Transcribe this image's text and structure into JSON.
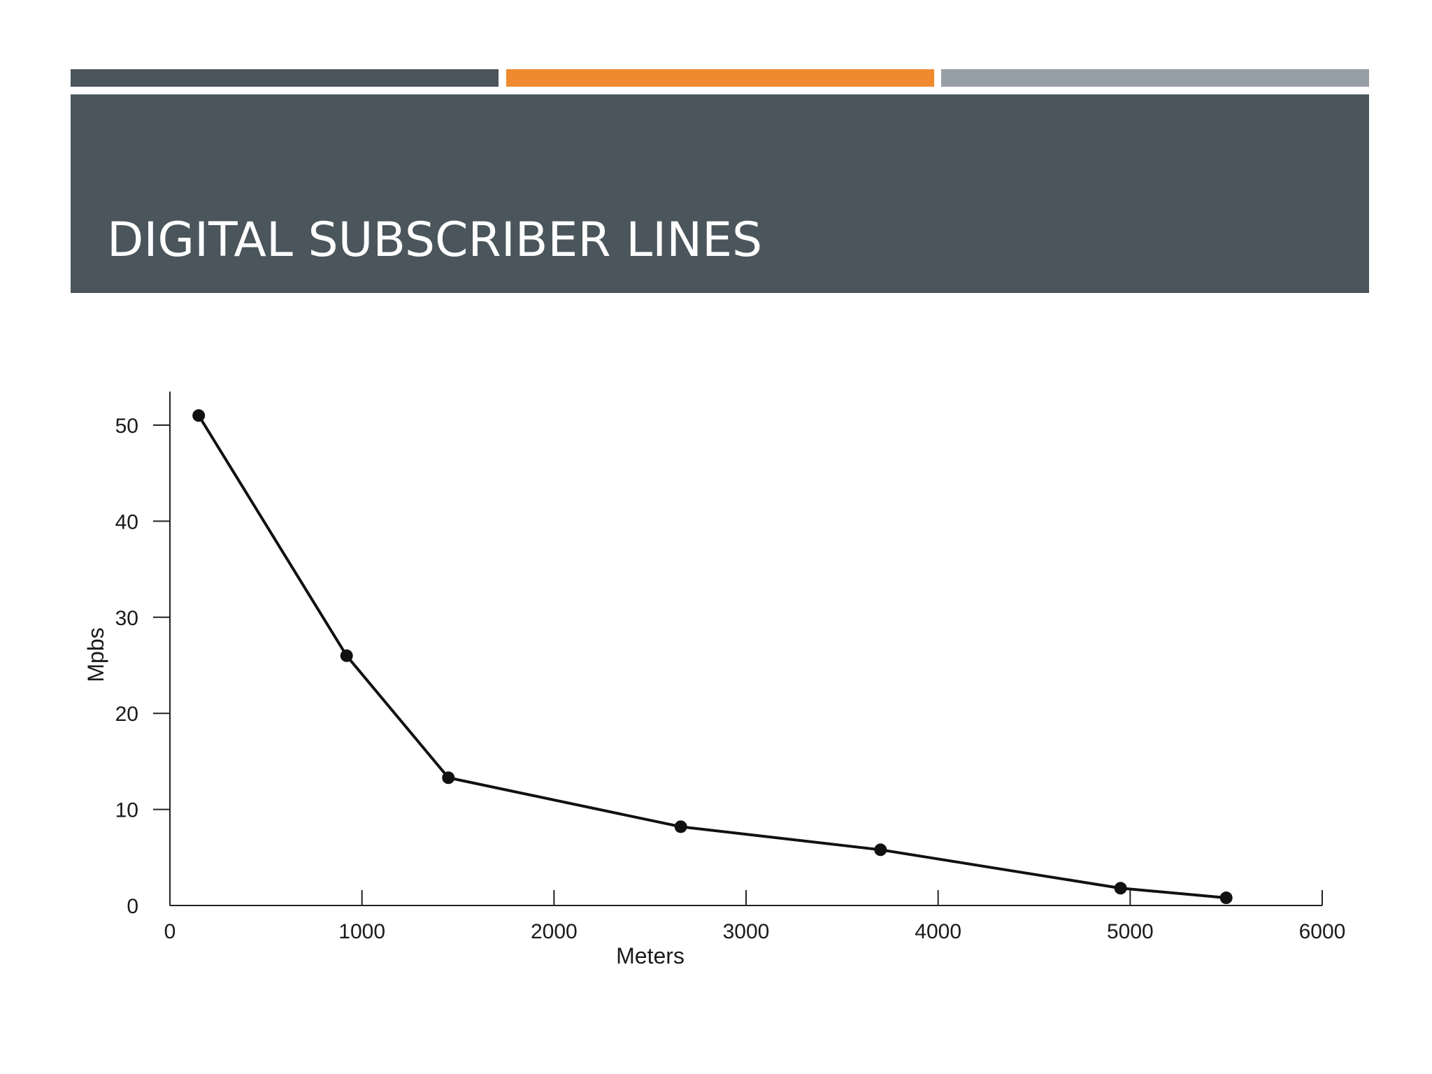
{
  "slide": {
    "title": "DIGITAL SUBSCRIBER LINES",
    "colors": {
      "dark": "#4a555c",
      "orange": "#ef8a2e",
      "gray": "#969ea6",
      "line": "#111111"
    }
  },
  "chart_data": {
    "type": "line",
    "title": "",
    "xlabel": "Meters",
    "ylabel": "Mpbs",
    "xlim": [
      0,
      6000
    ],
    "ylim": [
      0,
      50
    ],
    "x_ticks": [
      0,
      1000,
      2000,
      3000,
      4000,
      5000,
      6000
    ],
    "y_ticks": [
      0,
      10,
      20,
      30,
      40,
      50
    ],
    "grid": false,
    "series": [
      {
        "points": [
          {
            "x": 150,
            "y": 51
          },
          {
            "x": 920,
            "y": 26
          },
          {
            "x": 1450,
            "y": 13.3
          },
          {
            "x": 2660,
            "y": 8.2
          },
          {
            "x": 3700,
            "y": 5.8
          },
          {
            "x": 4950,
            "y": 1.8
          },
          {
            "x": 5500,
            "y": 0.8
          }
        ]
      }
    ]
  }
}
